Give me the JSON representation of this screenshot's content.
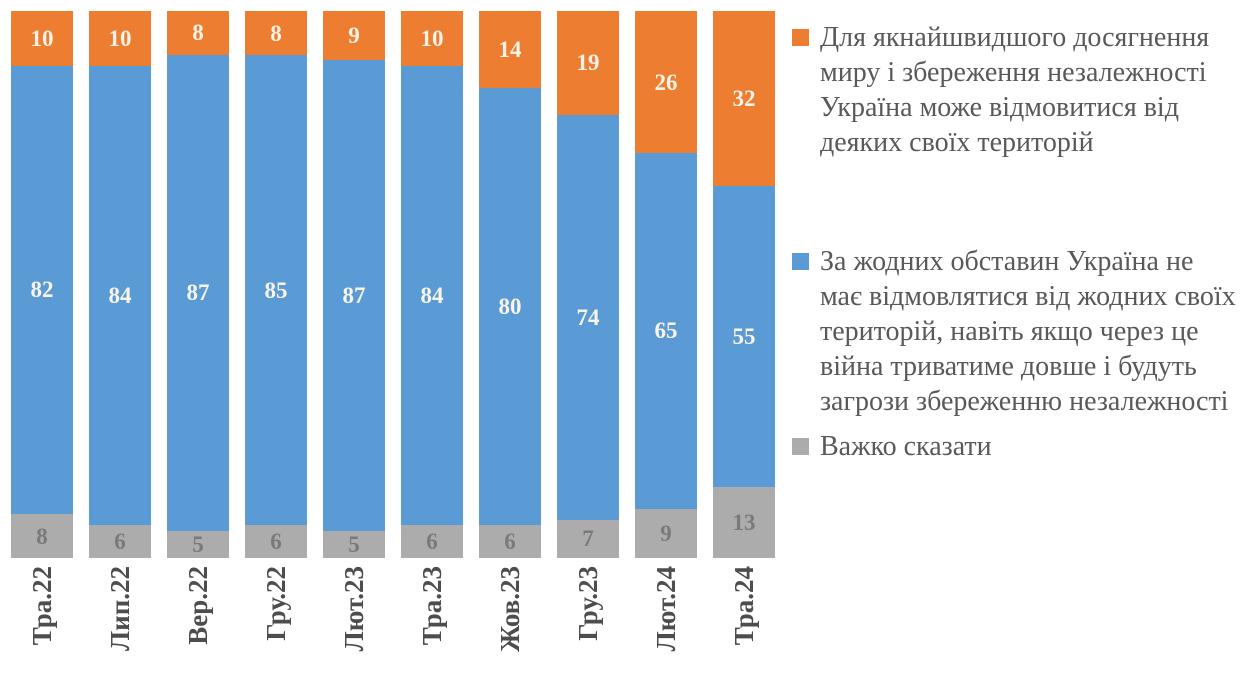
{
  "chart_data": {
    "type": "bar",
    "stacked": true,
    "orientation": "vertical",
    "grid": false,
    "legend_position": "right",
    "ylim": [
      0,
      100
    ],
    "categories": [
      "Тра.22",
      "Лип.22",
      "Вер.22",
      "Гру.22",
      "Лют.23",
      "Тра.23",
      "Жов.23",
      "Гру.23",
      "Лют.24",
      "Тра.24"
    ],
    "series": [
      {
        "key": "concede-territories",
        "name": "Для якнайшвидшого досягнення миру і збереження незалежності Україна може відмовитися від деяких своїх територій",
        "color": "#ED7D31",
        "label_color": "#FAF4E6",
        "values": [
          10,
          10,
          8,
          8,
          9,
          10,
          14,
          19,
          26,
          32
        ]
      },
      {
        "key": "no-concessions",
        "name": "За жодних обставин Україна не має відмовлятися від жодних своїх територій, навіть якщо через це війна триватиме довше і будуть загрози збереженню незалежності",
        "color": "#5B9BD5",
        "label_color": "#FAF4E6",
        "values": [
          82,
          84,
          87,
          85,
          87,
          84,
          80,
          74,
          65,
          55
        ]
      },
      {
        "key": "hard-to-say",
        "name": "Важко сказати",
        "color": "#ACACAC",
        "label_color": "#7A7A7A",
        "values": [
          8,
          6,
          5,
          6,
          5,
          6,
          6,
          7,
          9,
          13
        ]
      }
    ]
  },
  "style": {
    "axis_label_color": "#4D4D4D",
    "legend_text_color": "#595959"
  }
}
